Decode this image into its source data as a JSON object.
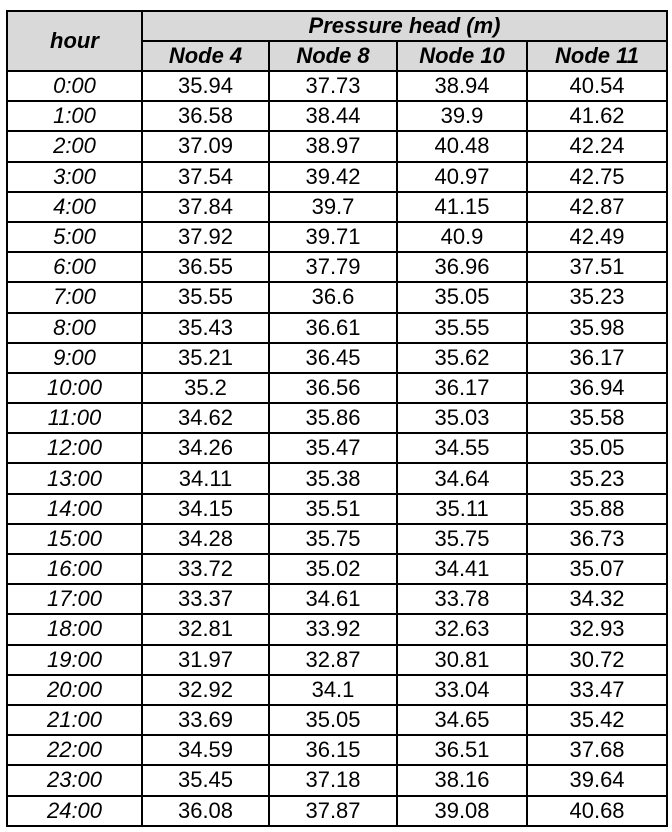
{
  "table": {
    "hour_header": "hour",
    "group_header": "Pressure head (m)",
    "columns": [
      "Node 4",
      "Node 8",
      "Node 10",
      "Node 11"
    ],
    "rows": [
      {
        "hour": "0:00",
        "values": [
          "35.94",
          "37.73",
          "38.94",
          "40.54"
        ]
      },
      {
        "hour": "1:00",
        "values": [
          "36.58",
          "38.44",
          "39.9",
          "41.62"
        ]
      },
      {
        "hour": "2:00",
        "values": [
          "37.09",
          "38.97",
          "40.48",
          "42.24"
        ]
      },
      {
        "hour": "3:00",
        "values": [
          "37.54",
          "39.42",
          "40.97",
          "42.75"
        ]
      },
      {
        "hour": "4:00",
        "values": [
          "37.84",
          "39.7",
          "41.15",
          "42.87"
        ]
      },
      {
        "hour": "5:00",
        "values": [
          "37.92",
          "39.71",
          "40.9",
          "42.49"
        ]
      },
      {
        "hour": "6:00",
        "values": [
          "36.55",
          "37.79",
          "36.96",
          "37.51"
        ]
      },
      {
        "hour": "7:00",
        "values": [
          "35.55",
          "36.6",
          "35.05",
          "35.23"
        ]
      },
      {
        "hour": "8:00",
        "values": [
          "35.43",
          "36.61",
          "35.55",
          "35.98"
        ]
      },
      {
        "hour": "9:00",
        "values": [
          "35.21",
          "36.45",
          "35.62",
          "36.17"
        ]
      },
      {
        "hour": "10:00",
        "values": [
          "35.2",
          "36.56",
          "36.17",
          "36.94"
        ]
      },
      {
        "hour": "11:00",
        "values": [
          "34.62",
          "35.86",
          "35.03",
          "35.58"
        ]
      },
      {
        "hour": "12:00",
        "values": [
          "34.26",
          "35.47",
          "34.55",
          "35.05"
        ]
      },
      {
        "hour": "13:00",
        "values": [
          "34.11",
          "35.38",
          "34.64",
          "35.23"
        ]
      },
      {
        "hour": "14:00",
        "values": [
          "34.15",
          "35.51",
          "35.11",
          "35.88"
        ]
      },
      {
        "hour": "15:00",
        "values": [
          "34.28",
          "35.75",
          "35.75",
          "36.73"
        ]
      },
      {
        "hour": "16:00",
        "values": [
          "33.72",
          "35.02",
          "34.41",
          "35.07"
        ]
      },
      {
        "hour": "17:00",
        "values": [
          "33.37",
          "34.61",
          "33.78",
          "34.32"
        ]
      },
      {
        "hour": "18:00",
        "values": [
          "32.81",
          "33.92",
          "32.63",
          "32.93"
        ]
      },
      {
        "hour": "19:00",
        "values": [
          "31.97",
          "32.87",
          "30.81",
          "30.72"
        ]
      },
      {
        "hour": "20:00",
        "values": [
          "32.92",
          "34.1",
          "33.04",
          "33.47"
        ]
      },
      {
        "hour": "21:00",
        "values": [
          "33.69",
          "35.05",
          "34.65",
          "35.42"
        ]
      },
      {
        "hour": "22:00",
        "values": [
          "34.59",
          "36.15",
          "36.51",
          "37.68"
        ]
      },
      {
        "hour": "23:00",
        "values": [
          "35.45",
          "37.18",
          "38.16",
          "39.64"
        ]
      },
      {
        "hour": "24:00",
        "values": [
          "36.08",
          "37.87",
          "39.08",
          "40.68"
        ]
      }
    ]
  },
  "colors": {
    "header_background": "#d9d9d9",
    "border": "#000000",
    "cell_background": "#ffffff"
  }
}
